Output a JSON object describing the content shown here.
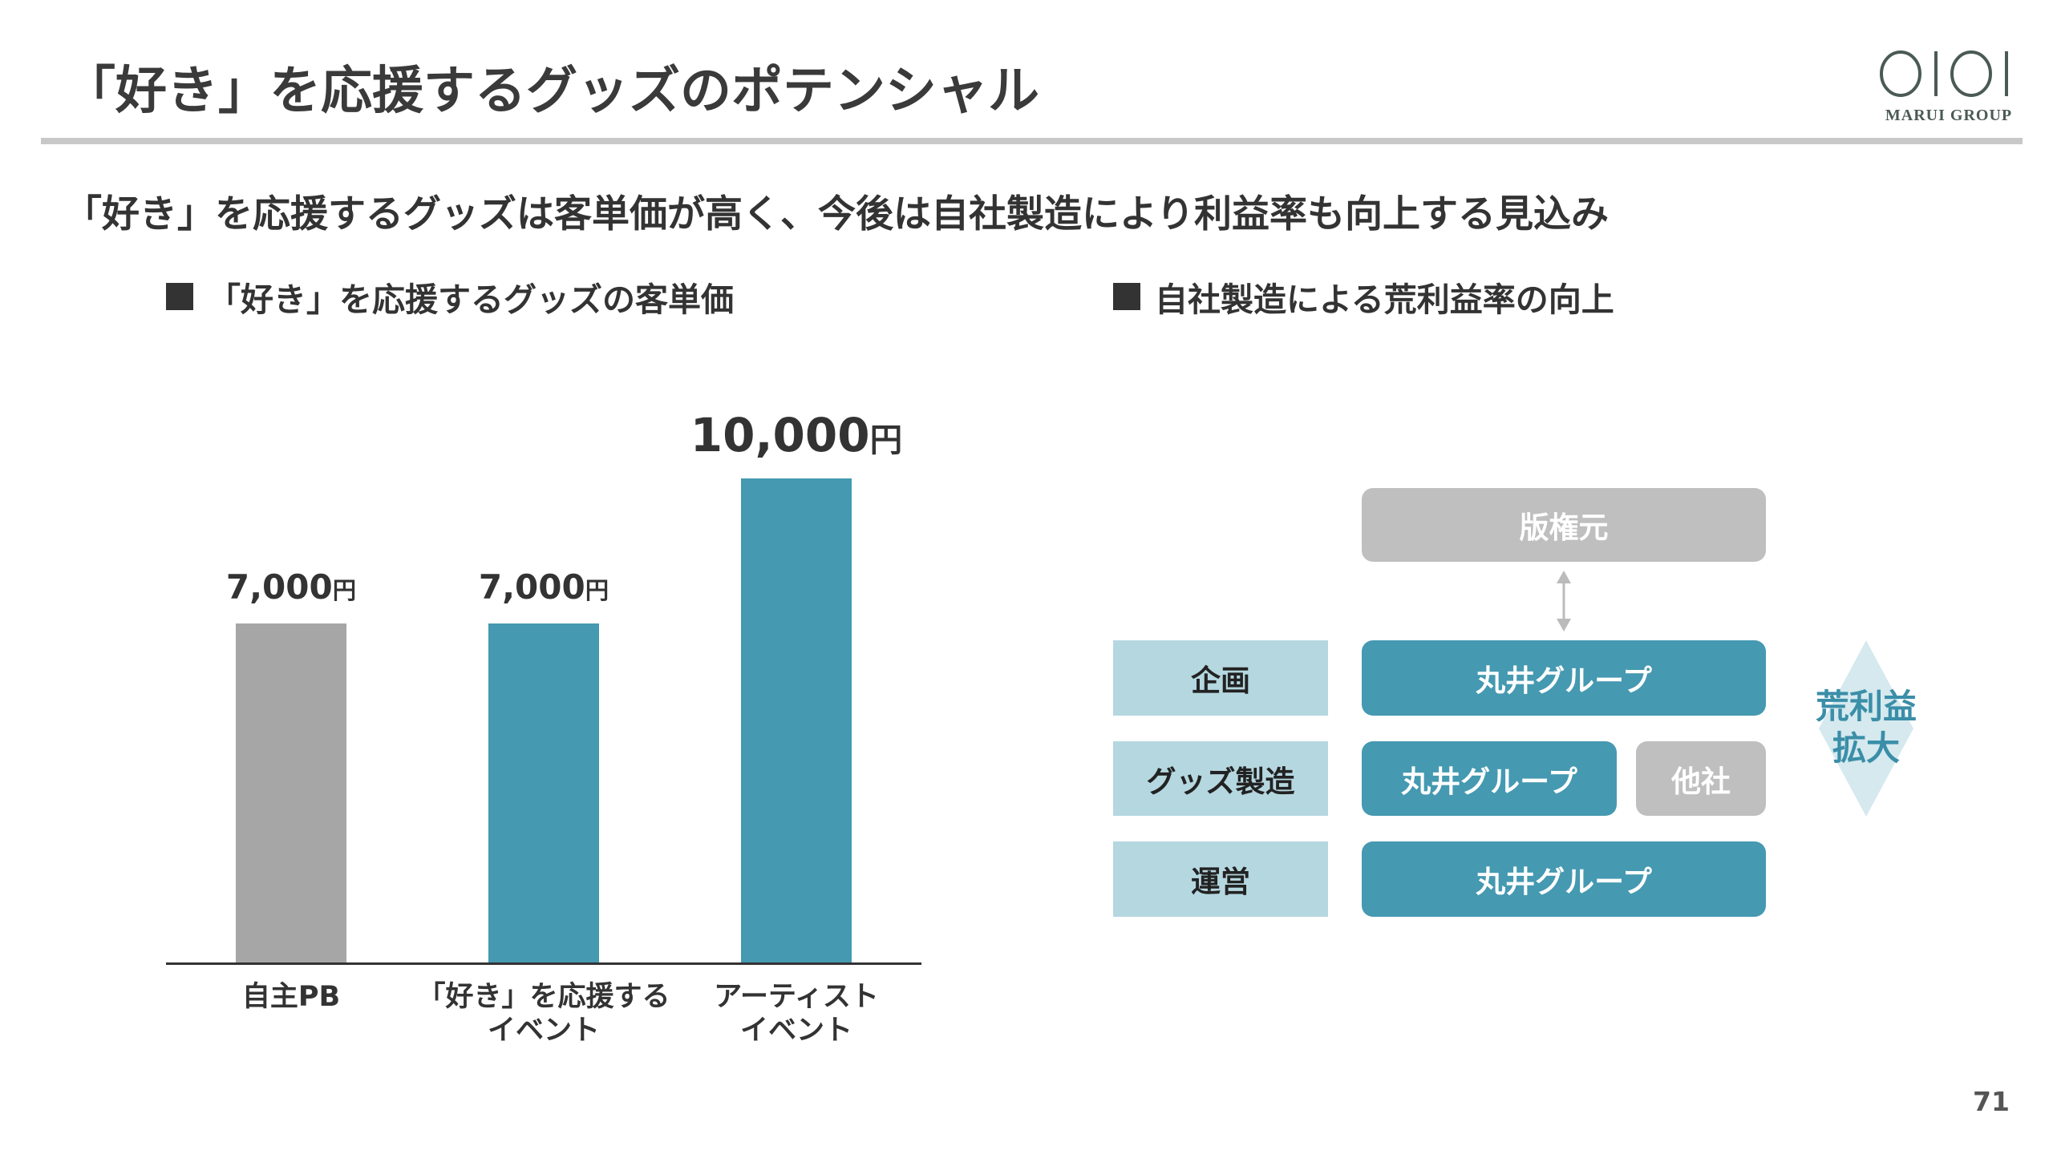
{
  "header": {
    "title": "「好き」を応援するグッズのポテンシャル",
    "logo_text": "MARUI GROUP"
  },
  "subtitle": "「好き」を応援するグッズは客単価が高く、今後は自社製造により利益率も向上する見込み",
  "left_section": {
    "heading": "「好き」を応援するグッズの客単価"
  },
  "right_section": {
    "heading": "自社製造による荒利益率の向上"
  },
  "chart_data": {
    "type": "bar",
    "title": "「好き」を応援するグッズの客単価",
    "categories": [
      "自主PB",
      "「好き」を応援する\nイベント",
      "アーティスト\nイベント"
    ],
    "category_lines": [
      [
        "自主PB"
      ],
      [
        "「好き」を応援する",
        "イベント"
      ],
      [
        "アーティスト",
        "イベント"
      ]
    ],
    "values": [
      7000,
      7000,
      10000
    ],
    "value_labels": [
      "7,000",
      "7,000",
      "10,000"
    ],
    "unit": "円",
    "colors": [
      "#a6a6a6",
      "#4599b1",
      "#4599b1"
    ],
    "ylim": [
      0,
      10000
    ],
    "xlabel": "",
    "ylabel": ""
  },
  "diagram": {
    "licensor": "版権元",
    "rows": [
      {
        "label": "企画",
        "boxes": [
          "丸井グループ"
        ]
      },
      {
        "label": "グッズ製造",
        "boxes": [
          "丸井グループ",
          "他社"
        ]
      },
      {
        "label": "運営",
        "boxes": [
          "丸井グループ"
        ]
      }
    ],
    "gain_label_line1": "荒利益",
    "gain_label_line2": "拡大"
  },
  "colors": {
    "teal": "#4599b1",
    "gray_bar": "#a6a6a6",
    "light_blue": "#b5d7e0",
    "box_gray": "#bfbfbf",
    "diamond": "#d5e9ee",
    "logo": "#4a5a55"
  },
  "page_number": "71"
}
